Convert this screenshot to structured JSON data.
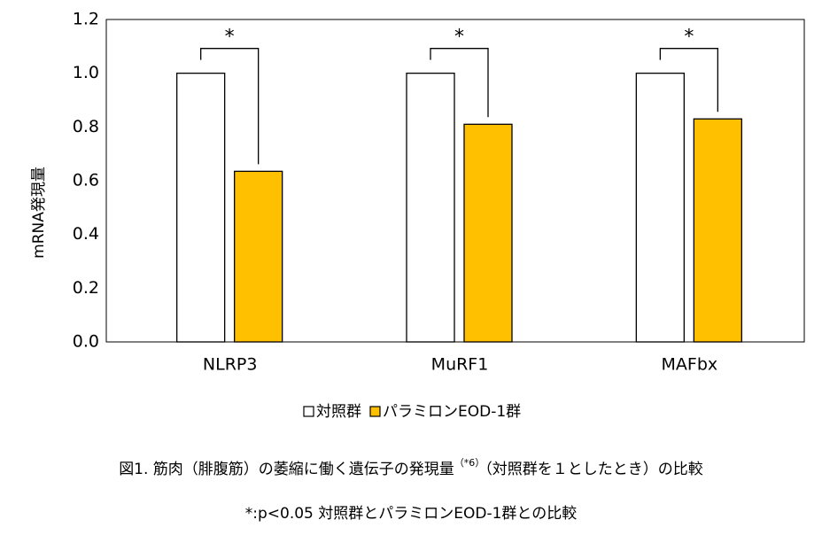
{
  "chart_data": {
    "type": "bar",
    "y_label": "mRNA発現量",
    "categories": [
      "NLRP3",
      "MuRF1",
      "MAFbx"
    ],
    "series": [
      {
        "name": "対照群",
        "color": "#ffffff",
        "values": [
          1.0,
          1.0,
          1.0
        ]
      },
      {
        "name": "パラミロンEOD-1群",
        "color": "#ffc000",
        "values": [
          0.635,
          0.81,
          0.83
        ]
      }
    ],
    "significance": [
      "*",
      "*",
      "*"
    ],
    "ylim": [
      0,
      1.2
    ],
    "yticks": [
      {
        "value": 0,
        "label": "0.0"
      },
      0.2,
      0.4,
      0.6,
      0.8,
      {
        "value": 1,
        "label": "1.0"
      },
      1.2
    ],
    "grid": false,
    "legend": "bottom"
  },
  "caption": {
    "main": "図1. 筋肉（腓腹筋）の萎縮に働く遺伝子の発現量",
    "superscript": "（*6）",
    "tail": "（対照群を１としたとき）の比較",
    "note": "*:p<0.05 対照群とパラミロンEOD-1群との比較"
  }
}
